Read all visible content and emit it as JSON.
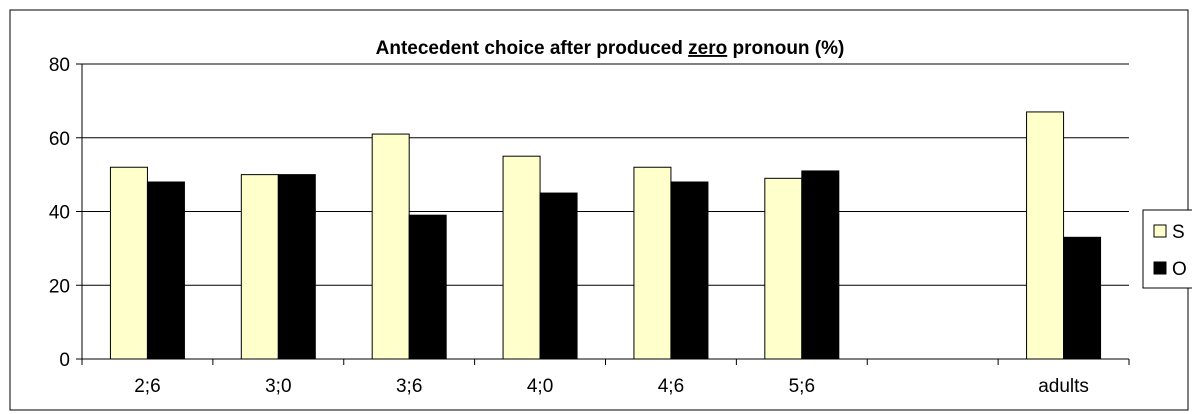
{
  "chart_data": {
    "type": "bar",
    "title_parts": [
      "Antecedent choice after produced ",
      "zero",
      " pronoun (%)"
    ],
    "categories": [
      "2;6",
      "3;0",
      "3;6",
      "4;0",
      "4;6",
      "5;6",
      "",
      "adults"
    ],
    "series": [
      {
        "name": "S",
        "values": [
          52,
          50,
          61,
          55,
          52,
          49,
          null,
          67
        ],
        "color": "#FFFFCC"
      },
      {
        "name": "O",
        "values": [
          48,
          50,
          39,
          45,
          48,
          51,
          null,
          33
        ],
        "color": "#000000"
      }
    ],
    "ylim": [
      0,
      80
    ],
    "yticks": [
      "0",
      "20",
      "40",
      "60",
      "80"
    ],
    "grid": true,
    "legend_position": "right"
  }
}
